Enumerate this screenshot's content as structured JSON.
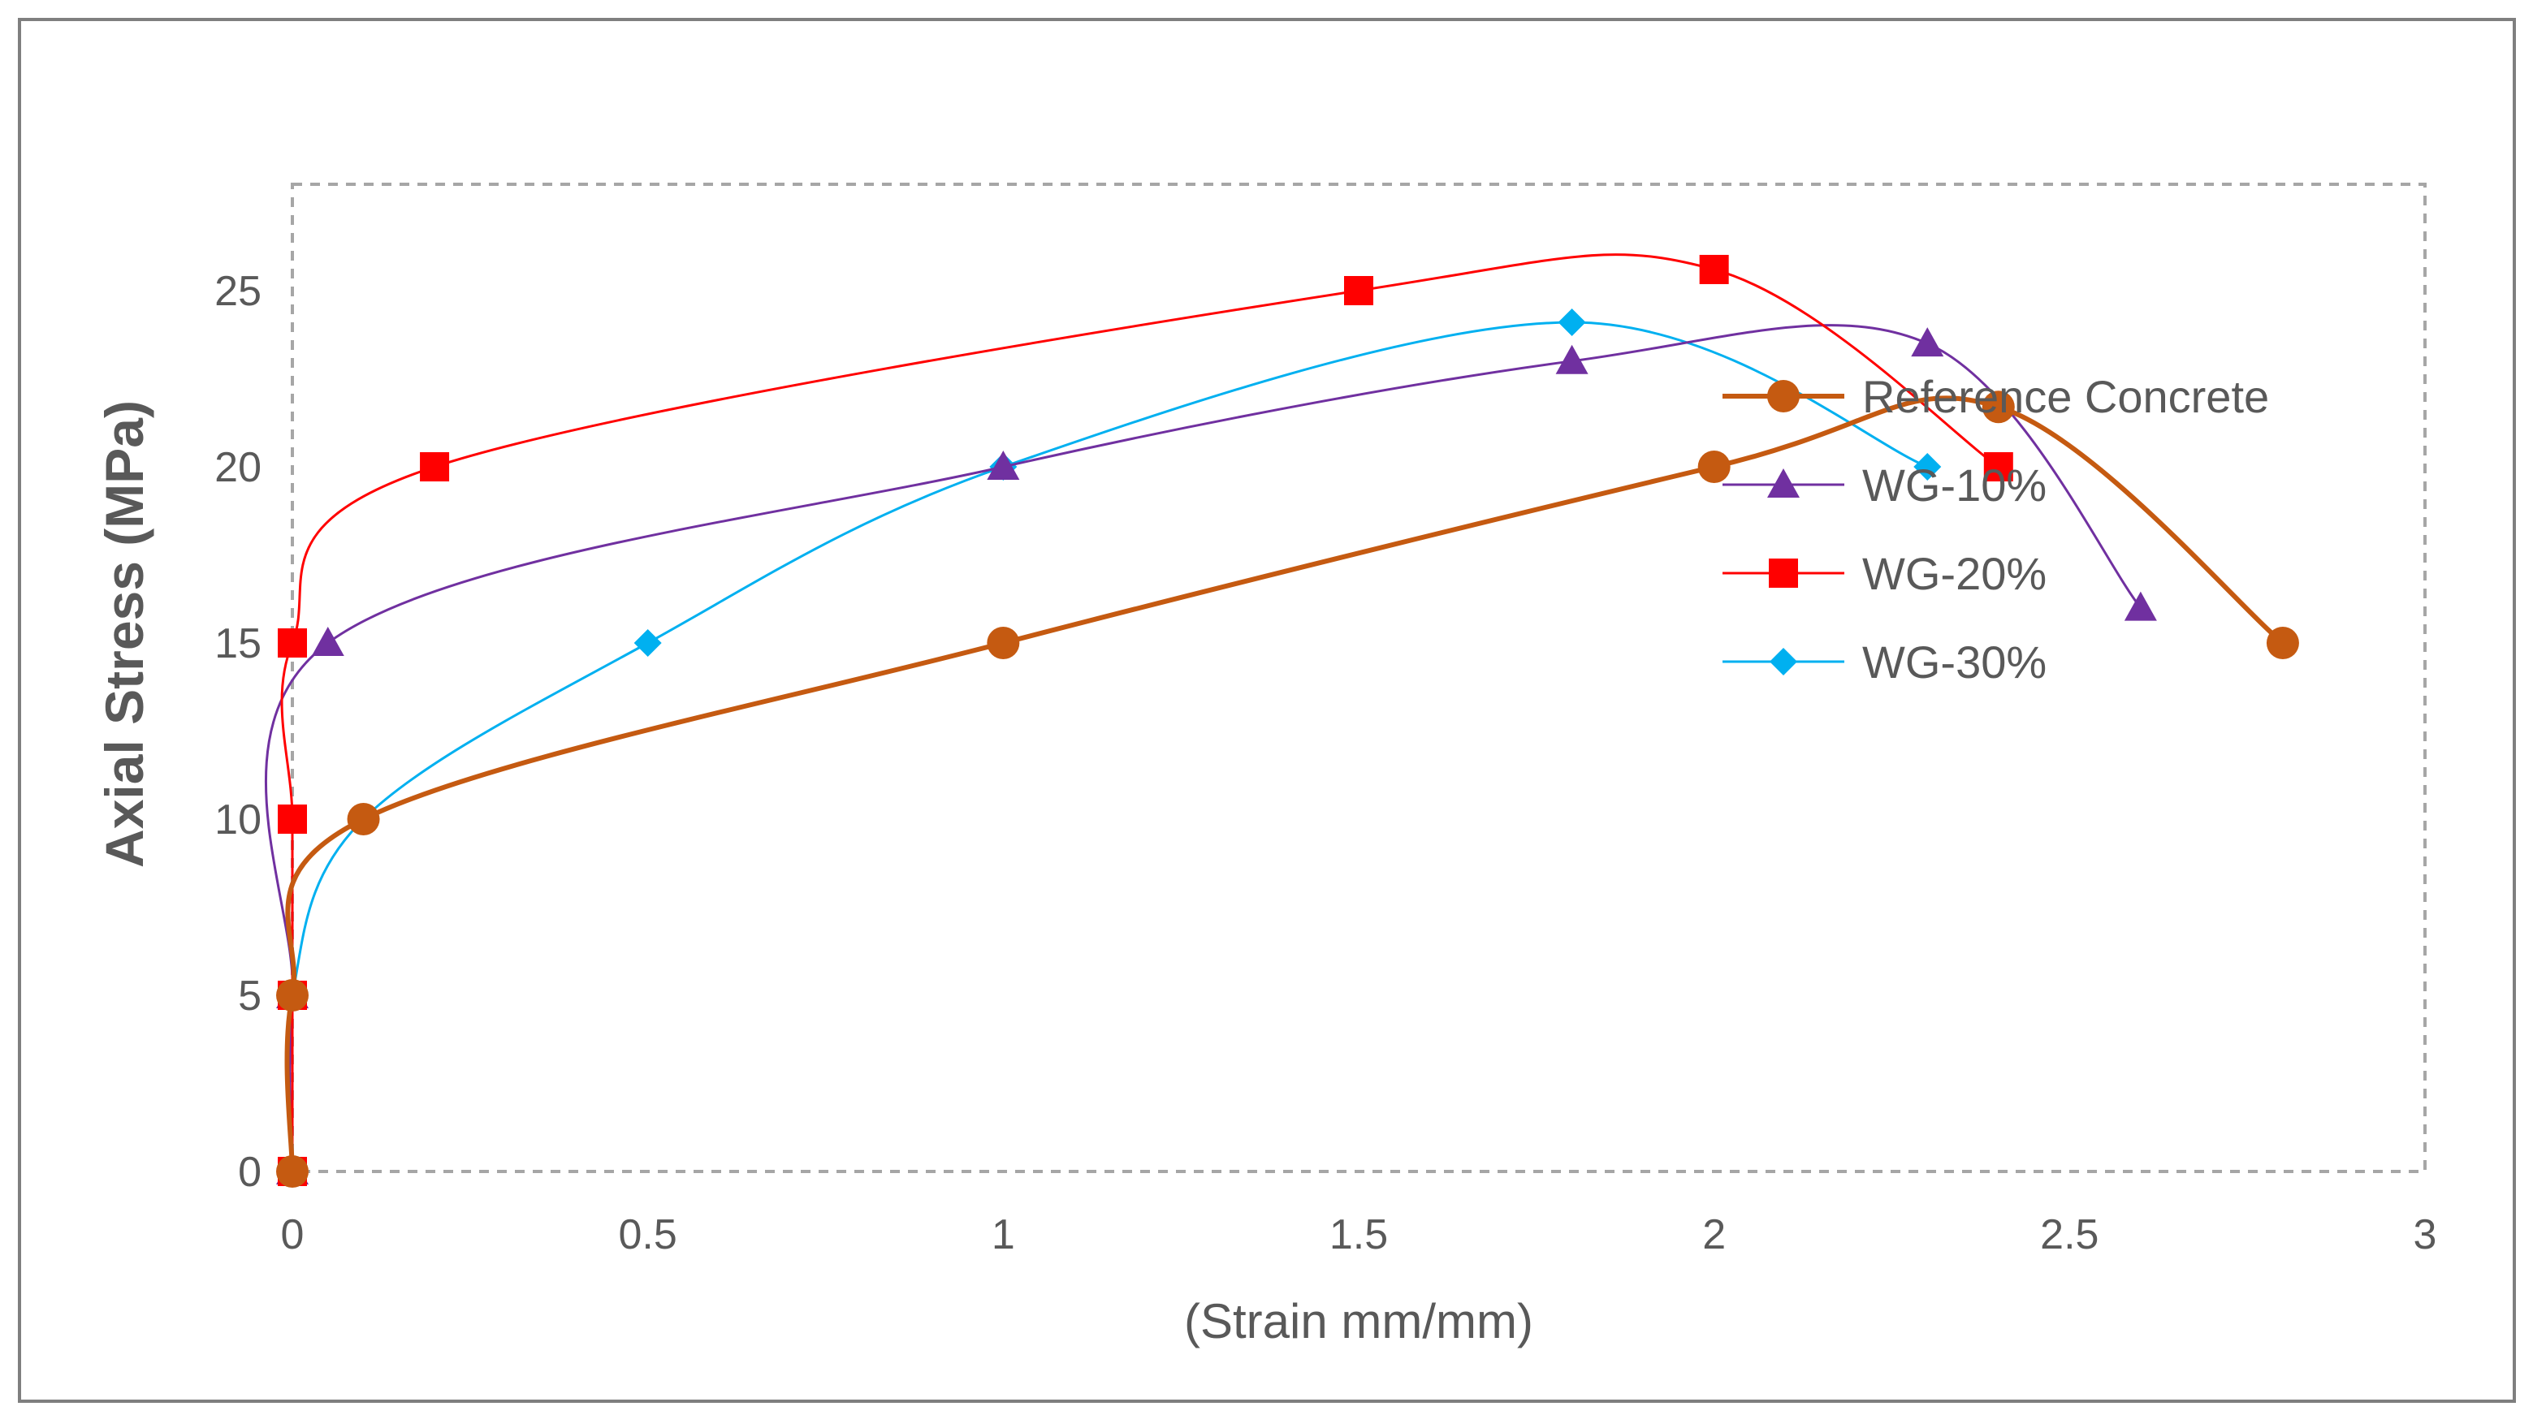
{
  "chart_data": {
    "type": "line",
    "smooth": true,
    "title": "",
    "xlabel": "(Strain mm/mm)",
    "ylabel": "Axial Stress (MPa)",
    "xlim": [
      0,
      3
    ],
    "ylim": [
      0,
      28
    ],
    "xticks": [
      0,
      0.5,
      1,
      1.5,
      2,
      2.5,
      3
    ],
    "yticks": [
      0,
      5,
      10,
      15,
      20,
      25
    ],
    "xtick_labels": [
      "0",
      "0.5",
      "1",
      "1.5",
      "2",
      "2.5",
      "3"
    ],
    "ytick_labels": [
      "0",
      "5",
      "10",
      "15",
      "20",
      "25"
    ],
    "legend_position": "right-center",
    "series": [
      {
        "name": "Reference Concrete",
        "color": "#c55a11",
        "marker": "circle",
        "x": [
          0,
          0,
          0.1,
          1,
          2,
          2.4,
          2.8
        ],
        "y": [
          0,
          5,
          10,
          15,
          20,
          21.7,
          15
        ]
      },
      {
        "name": "WG-10%",
        "color": "#7030a0",
        "marker": "triangle",
        "x": [
          0,
          0,
          0.05,
          1,
          1.8,
          2.3,
          2.6
        ],
        "y": [
          0,
          5,
          15,
          20,
          23,
          23.5,
          16
        ]
      },
      {
        "name": "WG-20%",
        "color": "#ff0000",
        "marker": "square",
        "x": [
          0,
          0,
          0,
          0,
          0.2,
          1.5,
          2,
          2.4
        ],
        "y": [
          0,
          5,
          10,
          15,
          20,
          25,
          25.6,
          20
        ]
      },
      {
        "name": "WG-30%",
        "color": "#00b0f0",
        "marker": "diamond",
        "x": [
          0,
          0,
          0.1,
          0.5,
          1,
          1.8,
          2.3
        ],
        "y": [
          0,
          5,
          10,
          15,
          20,
          24.1,
          20
        ]
      }
    ]
  }
}
